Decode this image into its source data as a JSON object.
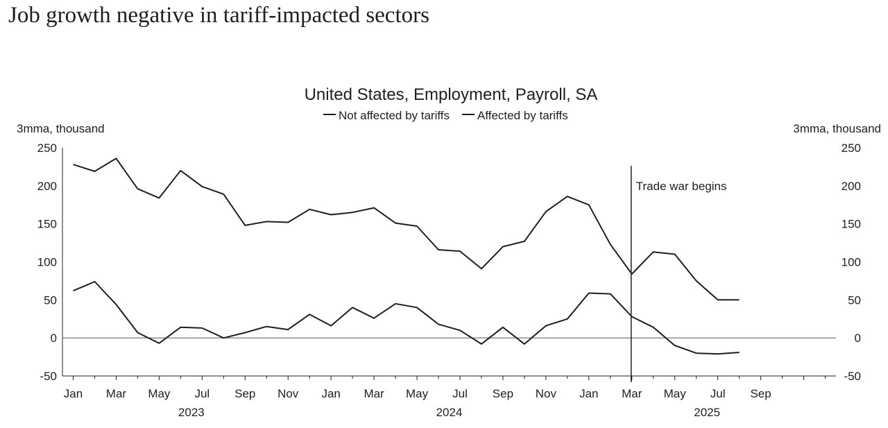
{
  "headline": "Job growth negative in tariff-impacted sectors",
  "chart_data": {
    "type": "line",
    "title": "United States, Employment, Payroll, SA",
    "ylabel_left": "3mma, thousand",
    "ylabel_right": "3mma, thousand",
    "ylim": [
      -50,
      250
    ],
    "yticks": [
      -50,
      0,
      50,
      100,
      150,
      200,
      250
    ],
    "x_start": "Jan 2023",
    "x_tick_labels": [
      "Jan",
      "Mar",
      "May",
      "Jul",
      "Sep",
      "Nov",
      "Jan",
      "Mar",
      "May",
      "Jul",
      "Sep",
      "Nov",
      "Jan",
      "Mar",
      "May",
      "Jul",
      "Sep"
    ],
    "year_labels": [
      "2023",
      "2024",
      "2025"
    ],
    "x": [
      "Jan 2023",
      "Feb 2023",
      "Mar 2023",
      "Apr 2023",
      "May 2023",
      "Jun 2023",
      "Jul 2023",
      "Aug 2023",
      "Sep 2023",
      "Oct 2023",
      "Nov 2023",
      "Dec 2023",
      "Jan 2024",
      "Feb 2024",
      "Mar 2024",
      "Apr 2024",
      "May 2024",
      "Jun 2024",
      "Jul 2024",
      "Aug 2024",
      "Sep 2024",
      "Oct 2024",
      "Nov 2024",
      "Dec 2024",
      "Jan 2025",
      "Feb 2025",
      "Mar 2025",
      "Apr 2025",
      "May 2025",
      "Jun 2025",
      "Jul 2025",
      "Aug 2025"
    ],
    "series": [
      {
        "name": "Not affected by tariffs",
        "values": [
          228,
          219,
          236,
          196,
          184,
          220,
          199,
          189,
          148,
          153,
          152,
          169,
          162,
          165,
          171,
          151,
          147,
          116,
          114,
          91,
          120,
          127,
          166,
          186,
          175,
          123,
          84,
          113,
          110,
          75,
          50,
          50
        ]
      },
      {
        "name": "Affected by tariffs",
        "values": [
          62,
          74,
          44,
          7,
          -7,
          14,
          13,
          0,
          7,
          15,
          11,
          31,
          16,
          40,
          26,
          45,
          40,
          18,
          10,
          -8,
          14,
          -8,
          16,
          25,
          59,
          58,
          28,
          14,
          -10,
          -20,
          -21,
          -19
        ]
      }
    ],
    "zero_line": true,
    "annotation": {
      "text": "Trade war begins",
      "at": "Mar 2025"
    },
    "legend_position": "top-center",
    "grid": false,
    "line_color": "#1e1e1e"
  }
}
